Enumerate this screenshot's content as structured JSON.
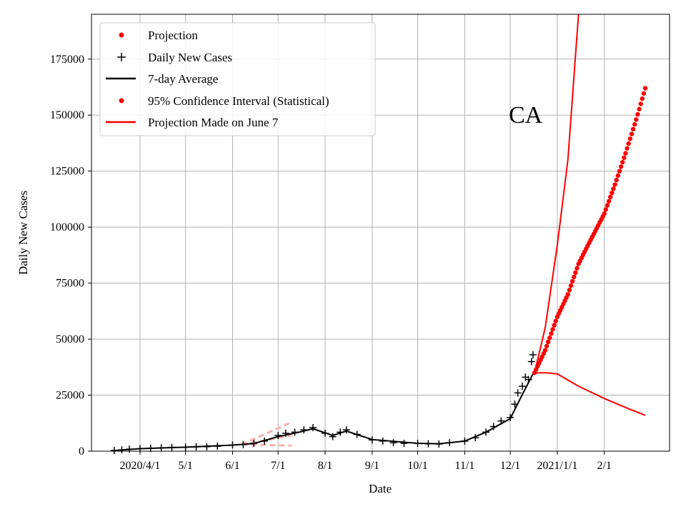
{
  "chart_data": {
    "type": "line",
    "xlabel": "Date",
    "ylabel": "Daily New Cases",
    "annotation": "CA",
    "ylim": [
      0,
      195000
    ],
    "xlim": [
      "2020-02-29",
      "2021-03-16"
    ],
    "grid": true,
    "legend_position": "top-left",
    "x_ticks": [
      {
        "date": "2020-04-01",
        "label": "2020/4/1"
      },
      {
        "date": "2020-05-01",
        "label": "5/1"
      },
      {
        "date": "2020-06-01",
        "label": "6/1"
      },
      {
        "date": "2020-07-01",
        "label": "7/1"
      },
      {
        "date": "2020-08-01",
        "label": "8/1"
      },
      {
        "date": "2020-09-01",
        "label": "9/1"
      },
      {
        "date": "2020-10-01",
        "label": "10/1"
      },
      {
        "date": "2020-11-01",
        "label": "11/1"
      },
      {
        "date": "2020-12-01",
        "label": "12/1"
      },
      {
        "date": "2021-01-01",
        "label": "2021/1/1"
      },
      {
        "date": "2021-02-01",
        "label": "2/1"
      }
    ],
    "y_ticks": [
      0,
      25000,
      50000,
      75000,
      100000,
      125000,
      150000,
      175000
    ],
    "legend": [
      "Projection",
      "Daily New Cases",
      "7-day Average",
      "95% Confidence Interval (Statistical)",
      "Projection Made on June 7"
    ],
    "colors": {
      "projection": "#ff0000",
      "cases": "#000000",
      "june7": "#ffb0b0"
    },
    "daily_new_cases": [
      [
        "2020-03-15",
        300
      ],
      [
        "2020-03-20",
        600
      ],
      [
        "2020-03-25",
        900
      ],
      [
        "2020-04-01",
        1100
      ],
      [
        "2020-04-08",
        1300
      ],
      [
        "2020-04-15",
        1500
      ],
      [
        "2020-04-22",
        1700
      ],
      [
        "2020-05-01",
        1800
      ],
      [
        "2020-05-08",
        1900
      ],
      [
        "2020-05-15",
        2000
      ],
      [
        "2020-05-22",
        2200
      ],
      [
        "2020-06-01",
        2800
      ],
      [
        "2020-06-08",
        3000
      ],
      [
        "2020-06-15",
        3500
      ],
      [
        "2020-06-22",
        4500
      ],
      [
        "2020-07-01",
        7000
      ],
      [
        "2020-07-06",
        8000
      ],
      [
        "2020-07-12",
        8500
      ],
      [
        "2020-07-18",
        9500
      ],
      [
        "2020-07-24",
        10500
      ],
      [
        "2020-08-01",
        8000
      ],
      [
        "2020-08-06",
        6500
      ],
      [
        "2020-08-11",
        8500
      ],
      [
        "2020-08-15",
        9500
      ],
      [
        "2020-08-22",
        7500
      ],
      [
        "2020-09-01",
        5000
      ],
      [
        "2020-09-08",
        4500
      ],
      [
        "2020-09-15",
        3800
      ],
      [
        "2020-09-22",
        3500
      ],
      [
        "2020-10-01",
        3500
      ],
      [
        "2020-10-08",
        3300
      ],
      [
        "2020-10-15",
        3200
      ],
      [
        "2020-10-22",
        3800
      ],
      [
        "2020-11-01",
        4500
      ],
      [
        "2020-11-08",
        6000
      ],
      [
        "2020-11-15",
        8500
      ],
      [
        "2020-11-20",
        11000
      ],
      [
        "2020-11-25",
        13500
      ],
      [
        "2020-12-01",
        15000
      ],
      [
        "2020-12-04",
        21000
      ],
      [
        "2020-12-06",
        26000
      ],
      [
        "2020-12-09",
        29000
      ],
      [
        "2020-12-11",
        33000
      ],
      [
        "2020-12-13",
        32000
      ],
      [
        "2020-12-15",
        40000
      ],
      [
        "2020-12-16",
        43000
      ]
    ],
    "seven_day_average": [
      [
        "2020-03-15",
        300
      ],
      [
        "2020-04-01",
        1100
      ],
      [
        "2020-05-01",
        1800
      ],
      [
        "2020-06-01",
        2700
      ],
      [
        "2020-06-15",
        3400
      ],
      [
        "2020-07-01",
        6500
      ],
      [
        "2020-07-15",
        8500
      ],
      [
        "2020-07-24",
        10000
      ],
      [
        "2020-08-06",
        7000
      ],
      [
        "2020-08-15",
        9000
      ],
      [
        "2020-09-01",
        5200
      ],
      [
        "2020-10-01",
        3500
      ],
      [
        "2020-10-15",
        3300
      ],
      [
        "2020-11-01",
        4500
      ],
      [
        "2020-11-15",
        8500
      ],
      [
        "2020-12-01",
        14500
      ],
      [
        "2020-12-08",
        24000
      ],
      [
        "2020-12-16",
        34500
      ]
    ],
    "projection": [
      [
        "2020-12-17",
        35000
      ],
      [
        "2020-12-24",
        45000
      ],
      [
        "2021-01-01",
        60000
      ],
      [
        "2021-01-08",
        70000
      ],
      [
        "2021-01-15",
        83600
      ],
      [
        "2021-01-22",
        93000
      ],
      [
        "2021-02-01",
        106000
      ],
      [
        "2021-02-08",
        119000
      ],
      [
        "2021-02-15",
        133000
      ],
      [
        "2021-02-22",
        148000
      ],
      [
        "2021-02-28",
        162000
      ]
    ],
    "ci_upper": [
      [
        "2020-12-17",
        35000
      ],
      [
        "2020-12-24",
        55000
      ],
      [
        "2021-01-01",
        92000
      ],
      [
        "2021-01-08",
        130000
      ],
      [
        "2021-01-15",
        195000
      ]
    ],
    "ci_lower": [
      [
        "2020-12-17",
        35000
      ],
      [
        "2020-12-25",
        35000
      ],
      [
        "2021-01-01",
        34500
      ],
      [
        "2021-01-15",
        29000
      ],
      [
        "2021-02-01",
        23500
      ],
      [
        "2021-02-15",
        19500
      ],
      [
        "2021-02-28",
        16000
      ]
    ],
    "june7_projection": [
      [
        [
          "2020-06-07",
          3000
        ],
        [
          "2020-07-10",
          13000
        ]
      ],
      [
        [
          "2020-06-07",
          3000
        ],
        [
          "2020-07-10",
          7000
        ]
      ],
      [
        [
          "2020-06-07",
          3000
        ],
        [
          "2020-07-10",
          2500
        ]
      ]
    ]
  }
}
